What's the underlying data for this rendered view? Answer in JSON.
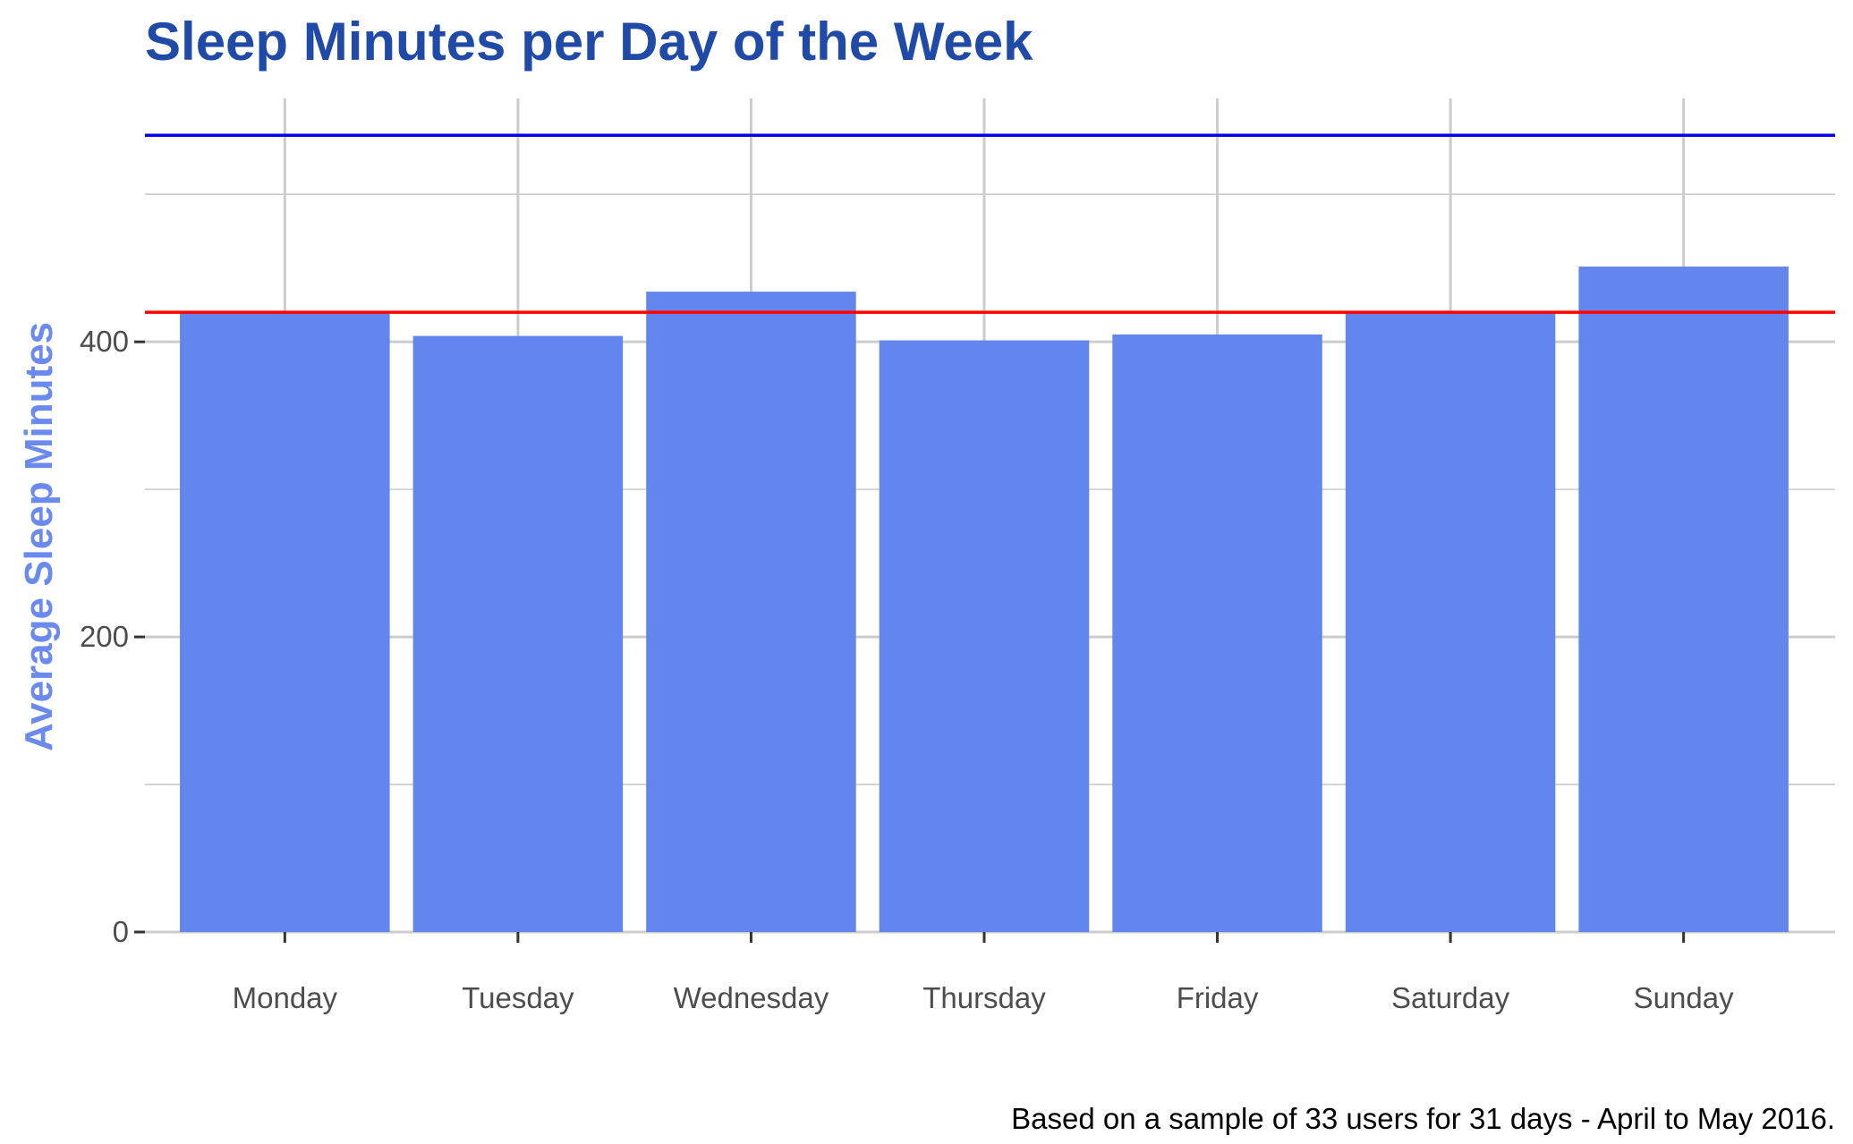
{
  "chart_data": {
    "type": "bar",
    "title": "Sleep Minutes per Day of the Week",
    "xlabel": "",
    "ylabel": "Average Sleep Minutes",
    "caption": "Based on a sample of 33 users for 31 days - April to May 2016.",
    "categories": [
      "Monday",
      "Tuesday",
      "Wednesday",
      "Thursday",
      "Friday",
      "Saturday",
      "Sunday"
    ],
    "values": [
      420,
      404,
      434,
      401,
      405,
      420,
      451
    ],
    "ylim": [
      0,
      565
    ],
    "yticks": [
      0,
      200,
      400
    ],
    "reference_lines": [
      {
        "value": 540,
        "color": "#0000ee"
      },
      {
        "value": 420,
        "color": "#ff0000"
      }
    ],
    "grid": true,
    "colors": {
      "bar": "#6285ee",
      "title": "#1f4aa8",
      "ylabel": "#6a8af0",
      "grid": "#cccccc"
    }
  }
}
